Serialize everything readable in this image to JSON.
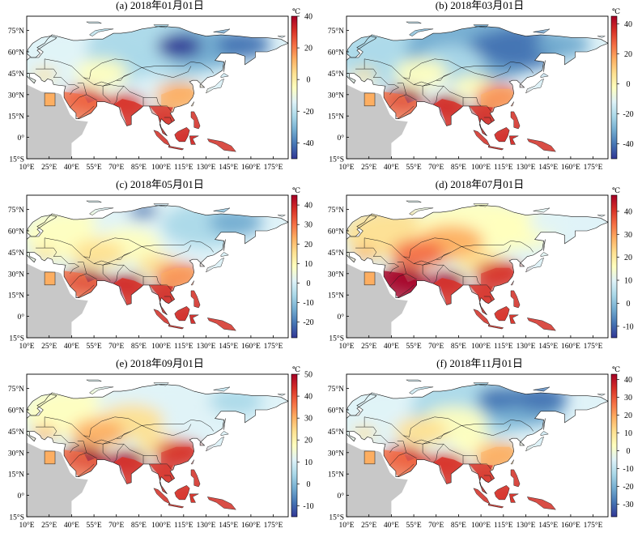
{
  "unit": "℃",
  "lat_labels": [
    "75°N",
    "60°N",
    "45°N",
    "30°N",
    "15°N",
    "0°",
    "15°S"
  ],
  "lon_labels": [
    "10°E",
    "25°E",
    "40°E",
    "55°E",
    "70°E",
    "85°E",
    "100°E",
    "115°E",
    "130°E",
    "145°E",
    "160°E",
    "175°E"
  ],
  "panels": [
    {
      "title": "(a) 2018年01月01日",
      "colorbar_ticks": [
        "40",
        "20",
        "0",
        "-20",
        "-40"
      ],
      "range": [
        -50,
        40
      ]
    },
    {
      "title": "(b) 2018年03月01日",
      "colorbar_ticks": [
        "40",
        "20",
        "0",
        "-20",
        "-40"
      ],
      "range": [
        -50,
        45
      ]
    },
    {
      "title": "(c) 2018年05月01日",
      "colorbar_ticks": [
        "40",
        "30",
        "20",
        "10",
        "0",
        "-10",
        "-20"
      ],
      "range": [
        -28,
        45
      ]
    },
    {
      "title": "(d) 2018年07月01日",
      "colorbar_ticks": [
        "40",
        "30",
        "20",
        "10",
        "0",
        "-10"
      ],
      "range": [
        -15,
        47
      ]
    },
    {
      "title": "(e) 2018年09月01日",
      "colorbar_ticks": [
        "50",
        "40",
        "30",
        "20",
        "10",
        "0",
        "-10"
      ],
      "range": [
        -15,
        50
      ]
    },
    {
      "title": "(f) 2018年11月01日",
      "colorbar_ticks": [
        "40",
        "30",
        "20",
        "10",
        "0",
        "-10",
        "-20",
        "-30"
      ],
      "range": [
        -37,
        43
      ]
    }
  ],
  "colors": {
    "ocean": "#ffffff",
    "africa_land": "#c8c8c8",
    "colormap": [
      "#313695",
      "#4575b4",
      "#74add1",
      "#abd9e9",
      "#e0f3f8",
      "#ffffbf",
      "#fee090",
      "#fdae61",
      "#f46d43",
      "#d73027",
      "#a50026"
    ]
  }
}
